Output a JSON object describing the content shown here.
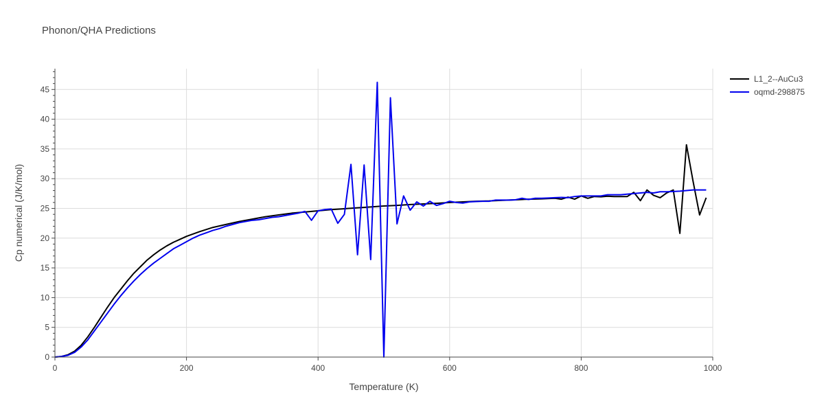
{
  "chart_data": {
    "type": "line",
    "title": "Phonon/QHA Predictions",
    "xlabel": "Temperature (K)",
    "ylabel": "Cp numerical (J/K/mol)",
    "xlim": [
      0,
      1000
    ],
    "ylim": [
      0,
      48.5
    ],
    "xticks": [
      0,
      200,
      400,
      600,
      800,
      1000
    ],
    "yticks": [
      0,
      5,
      10,
      15,
      20,
      25,
      30,
      35,
      40,
      45
    ],
    "grid": true,
    "legend_position": "top-right",
    "series": [
      {
        "name": "L1_2--AuCu3",
        "color": "#000000",
        "x": [
          0,
          10,
          20,
          30,
          40,
          50,
          60,
          70,
          80,
          90,
          100,
          110,
          120,
          130,
          140,
          150,
          160,
          170,
          180,
          190,
          200,
          220,
          240,
          260,
          280,
          300,
          320,
          340,
          360,
          380,
          400,
          420,
          440,
          460,
          480,
          500,
          520,
          540,
          560,
          580,
          600,
          620,
          640,
          660,
          680,
          700,
          720,
          740,
          760,
          770,
          780,
          790,
          800,
          810,
          820,
          830,
          840,
          850,
          860,
          870,
          880,
          890,
          900,
          910,
          920,
          930,
          940,
          950,
          960,
          970,
          980,
          990
        ],
        "y": [
          0,
          0.1,
          0.4,
          1.0,
          2.0,
          3.4,
          5.0,
          6.7,
          8.4,
          10.0,
          11.4,
          12.8,
          14.1,
          15.2,
          16.3,
          17.2,
          18.0,
          18.7,
          19.3,
          19.8,
          20.3,
          21.1,
          21.8,
          22.3,
          22.8,
          23.2,
          23.6,
          23.9,
          24.2,
          24.4,
          24.6,
          24.8,
          24.95,
          25.1,
          25.25,
          25.4,
          25.5,
          25.65,
          25.75,
          25.85,
          26.0,
          26.1,
          26.2,
          26.25,
          26.35,
          26.45,
          26.55,
          26.6,
          26.7,
          26.55,
          26.9,
          26.55,
          27.1,
          26.7,
          27.0,
          26.95,
          27.05,
          27.0,
          27.0,
          27.0,
          27.7,
          26.3,
          28.1,
          27.2,
          26.8,
          27.6,
          28.1,
          20.8,
          35.7,
          29.6,
          23.9,
          26.8
        ]
      },
      {
        "name": "oqmd-298875",
        "color": "#0000ee",
        "x": [
          0,
          10,
          20,
          30,
          40,
          50,
          60,
          70,
          80,
          90,
          100,
          110,
          120,
          130,
          140,
          150,
          160,
          170,
          180,
          190,
          200,
          210,
          220,
          230,
          240,
          250,
          260,
          270,
          280,
          290,
          300,
          310,
          320,
          330,
          340,
          350,
          360,
          370,
          380,
          390,
          400,
          410,
          420,
          430,
          440,
          450,
          460,
          470,
          480,
          490,
          500,
          510,
          520,
          530,
          540,
          550,
          560,
          570,
          580,
          590,
          600,
          610,
          620,
          630,
          640,
          650,
          660,
          670,
          680,
          690,
          700,
          710,
          720,
          730,
          740,
          750,
          760,
          770,
          780,
          790,
          800,
          810,
          820,
          830,
          840,
          850,
          860,
          870,
          880,
          890,
          900,
          910,
          920,
          930,
          940,
          950,
          960,
          970,
          980,
          990
        ],
        "y": [
          0,
          0.1,
          0.3,
          0.8,
          1.7,
          2.9,
          4.4,
          5.9,
          7.4,
          8.9,
          10.3,
          11.6,
          12.8,
          13.9,
          14.9,
          15.8,
          16.6,
          17.4,
          18.2,
          18.8,
          19.4,
          20.0,
          20.5,
          20.9,
          21.3,
          21.6,
          22.0,
          22.3,
          22.6,
          22.8,
          23.0,
          23.1,
          23.3,
          23.5,
          23.6,
          23.8,
          24.0,
          24.2,
          24.5,
          23.0,
          24.6,
          24.8,
          24.9,
          22.5,
          24.0,
          32.4,
          17.2,
          32.3,
          16.4,
          46.2,
          0,
          43.6,
          22.4,
          27.1,
          24.7,
          26.1,
          25.4,
          26.2,
          25.5,
          25.8,
          26.2,
          26.0,
          25.9,
          26.1,
          26.15,
          26.2,
          26.2,
          26.4,
          26.4,
          26.4,
          26.45,
          26.7,
          26.5,
          26.7,
          26.7,
          26.75,
          26.8,
          26.85,
          26.8,
          27.0,
          27.1,
          27.1,
          27.1,
          27.1,
          27.3,
          27.3,
          27.3,
          27.4,
          27.5,
          27.6,
          27.7,
          27.6,
          27.8,
          27.8,
          27.85,
          27.9,
          28.0,
          28.1,
          28.1,
          28.1
        ]
      }
    ]
  }
}
